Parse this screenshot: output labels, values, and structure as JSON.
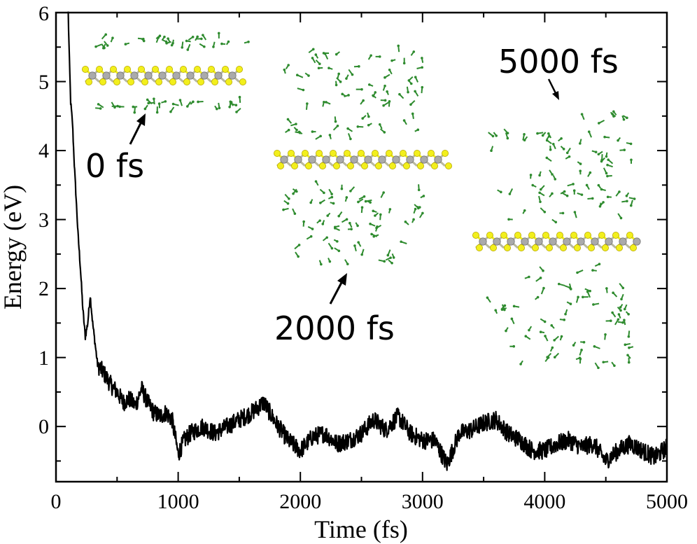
{
  "chart_data": {
    "type": "line",
    "title": "",
    "xlabel": "Time (fs)",
    "ylabel": "Energy (eV)",
    "xlim": [
      0,
      5000
    ],
    "ylim": [
      -0.8,
      6
    ],
    "xticks": [
      "0",
      "1000",
      "2000",
      "3000",
      "4000",
      "5000"
    ],
    "yticks": [
      "0",
      "1",
      "2",
      "3",
      "4",
      "5",
      "6"
    ],
    "grid": false,
    "series": [
      {
        "name": "Energy",
        "color": "#000000",
        "x": [
          100,
          110,
          120,
          135,
          150,
          165,
          180,
          200,
          220,
          240,
          260,
          280,
          300,
          320,
          340,
          360,
          380,
          400,
          450,
          500,
          550,
          600,
          650,
          700,
          750,
          800,
          850,
          900,
          950,
          1000,
          1050,
          1100,
          1200,
          1300,
          1400,
          1500,
          1600,
          1700,
          1800,
          1900,
          2000,
          2100,
          2200,
          2300,
          2400,
          2500,
          2600,
          2700,
          2800,
          2900,
          3000,
          3100,
          3200,
          3300,
          3400,
          3500,
          3600,
          3700,
          3800,
          3900,
          4000,
          4100,
          4200,
          4300,
          4400,
          4500,
          4600,
          4700,
          4800,
          4900,
          5000
        ],
        "y": [
          6.0,
          5.3,
          4.7,
          4.4,
          3.8,
          3.3,
          2.8,
          2.3,
          1.7,
          1.3,
          1.5,
          1.9,
          1.5,
          1.2,
          0.9,
          0.85,
          0.8,
          0.75,
          0.6,
          0.5,
          0.35,
          0.4,
          0.3,
          0.55,
          0.35,
          0.2,
          0.15,
          0.2,
          0.1,
          -0.4,
          -0.2,
          -0.1,
          0.0,
          -0.1,
          0.0,
          0.1,
          0.2,
          0.35,
          0.05,
          -0.2,
          -0.35,
          -0.15,
          -0.1,
          -0.25,
          -0.2,
          -0.1,
          0.1,
          -0.05,
          0.15,
          -0.1,
          -0.2,
          -0.2,
          -0.55,
          -0.1,
          -0.05,
          0.05,
          0.1,
          -0.1,
          -0.2,
          -0.35,
          -0.35,
          -0.25,
          -0.2,
          -0.3,
          -0.25,
          -0.5,
          -0.35,
          -0.25,
          -0.35,
          -0.45,
          -0.3
        ]
      }
    ],
    "annotations": [
      "0 fs",
      "2000 fs",
      "5000 fs"
    ]
  },
  "colors": {
    "line": "#000000",
    "sulfur": "#f2ef1c",
    "metal": "#aaaaaa",
    "molecule": "#2e8b2e"
  }
}
